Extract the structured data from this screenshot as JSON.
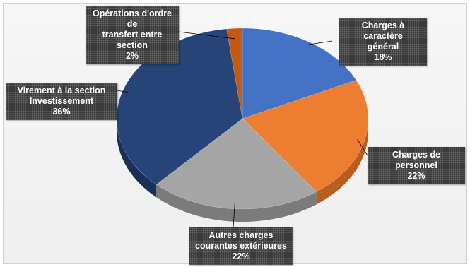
{
  "chart_data": {
    "type": "pie",
    "title": "",
    "slices": [
      {
        "label": "Charges à caractère général",
        "value": 18,
        "color": "#4472c4",
        "side": "#2f5597"
      },
      {
        "label": "Charges de personnel",
        "value": 22,
        "color": "#ed7d31",
        "side": "#b85f20"
      },
      {
        "label": "Autres charges courantes extérieures",
        "value": 22,
        "color": "#a5a5a5",
        "side": "#7b7b7b"
      },
      {
        "label": "Virement à la section Investissement",
        "value": 36,
        "color": "#264478",
        "side": "#1a3056"
      },
      {
        "label": "Opérations d'ordre de transfert entre section",
        "value": 2,
        "color": "#c55a11",
        "side": "#8a3d0b"
      }
    ],
    "data_labels": [
      {
        "lines": [
          "Charges à caractère",
          "général"
        ],
        "pct": "18%"
      },
      {
        "lines": [
          "Charges de personnel"
        ],
        "pct": "22%"
      },
      {
        "lines": [
          "Autres charges",
          "courantes extérieures"
        ],
        "pct": "22%"
      },
      {
        "lines": [
          "Virement à la section",
          "Investissement"
        ],
        "pct": "36%"
      },
      {
        "lines": [
          "Opérations d'ordre de",
          "transfert entre",
          "section"
        ],
        "pct": "2%"
      }
    ],
    "legend": "none",
    "style": "3d-pie"
  }
}
